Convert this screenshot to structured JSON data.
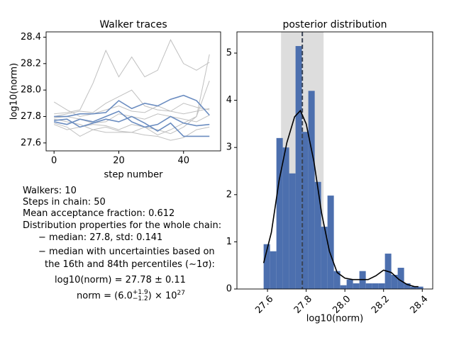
{
  "chart_data": [
    {
      "type": "line",
      "title": "Walker traces",
      "xlabel": "step number",
      "ylabel": "log10(norm)",
      "x": [
        0,
        4,
        8,
        12,
        16,
        20,
        24,
        28,
        32,
        36,
        40,
        44,
        48
      ],
      "series": [
        {
          "color": "#c0c0c0",
          "values": [
            27.82,
            27.83,
            27.85,
            28.05,
            28.3,
            28.1,
            28.25,
            28.1,
            28.15,
            28.38,
            28.2,
            28.15,
            28.21
          ]
        },
        {
          "color": "#c0c0c0",
          "values": [
            27.91,
            27.85,
            27.8,
            27.82,
            27.85,
            27.88,
            27.84,
            27.83,
            27.88,
            27.84,
            27.9,
            27.87,
            27.85
          ]
        },
        {
          "color": "#c0c0c0",
          "values": [
            27.75,
            27.72,
            27.65,
            27.7,
            27.72,
            27.69,
            27.68,
            27.72,
            27.66,
            27.7,
            27.75,
            27.8,
            28.07
          ]
        },
        {
          "color": "#c0c0c0",
          "values": [
            27.74,
            27.7,
            27.72,
            27.74,
            27.73,
            27.7,
            27.74,
            27.72,
            27.7,
            27.67,
            27.72,
            27.8,
            28.27
          ]
        },
        {
          "color": "#c0c0c0",
          "values": [
            27.79,
            27.8,
            27.78,
            27.75,
            27.76,
            27.82,
            27.8,
            27.78,
            27.82,
            27.8,
            27.78,
            27.76,
            27.81
          ]
        },
        {
          "color": "#c0c0c0",
          "values": [
            27.78,
            27.76,
            27.74,
            27.7,
            27.68,
            27.68,
            27.68,
            27.66,
            27.65,
            27.62,
            27.64,
            27.7,
            27.72
          ]
        },
        {
          "color": "#c0c0c0",
          "values": [
            27.8,
            27.82,
            27.84,
            27.83,
            27.9,
            27.95,
            28.0,
            27.88,
            27.85,
            27.84,
            27.82,
            27.84,
            27.86
          ]
        },
        {
          "color": "#6a8cc0",
          "values": [
            27.8,
            27.8,
            27.82,
            27.82,
            27.83,
            27.92,
            27.86,
            27.9,
            27.88,
            27.93,
            27.96,
            27.92,
            27.81
          ]
        },
        {
          "color": "#6a8cc0",
          "values": [
            27.76,
            27.74,
            27.78,
            27.76,
            27.8,
            27.84,
            27.76,
            27.72,
            27.74,
            27.8,
            27.75,
            27.73,
            27.74
          ]
        },
        {
          "color": "#6a8cc0",
          "values": [
            27.77,
            27.78,
            27.72,
            27.75,
            27.78,
            27.76,
            27.8,
            27.75,
            27.69,
            27.75,
            27.65,
            27.65,
            27.65
          ]
        }
      ],
      "xlim": [
        -2.45,
        51.45
      ],
      "ylim": [
        27.54,
        28.44
      ],
      "xticks": [
        0,
        20,
        40
      ],
      "yticks": [
        27.6,
        27.8,
        {
          "value": 28,
          "label": "28.0"
        },
        28.2,
        28.4
      ]
    },
    {
      "type": "histogram",
      "title": "posterior distribution",
      "xlabel": "log10(norm)",
      "color": "#4c6fae",
      "bins": [
        27.58,
        27.613,
        27.646,
        27.679,
        27.712,
        27.745,
        27.778,
        27.811,
        27.844,
        27.877,
        27.91,
        27.943,
        27.976,
        28.009,
        28.042,
        28.075,
        28.108,
        28.141,
        28.174,
        28.207,
        28.24,
        28.273,
        28.306,
        28.339,
        28.372,
        28.405
      ],
      "values": [
        0.95,
        0.8,
        3.2,
        3.0,
        2.45,
        5.15,
        3.33,
        4.2,
        2.27,
        1.32,
        1.98,
        0.38,
        0.08,
        0.2,
        0.12,
        0.38,
        0.12,
        0.12,
        0.12,
        0.75,
        0.3,
        0.45,
        0.12,
        0.05,
        0.05
      ],
      "kde": {
        "color": "#000000",
        "x": [
          27.58,
          27.62,
          27.66,
          27.7,
          27.74,
          27.77,
          27.8,
          27.84,
          27.88,
          27.92,
          27.96,
          28.0,
          28.04,
          28.08,
          28.12,
          28.16,
          28.2,
          28.24,
          28.28,
          28.32,
          28.36,
          28.38
        ],
        "values": [
          0.55,
          1.2,
          2.3,
          3.1,
          3.65,
          3.78,
          3.5,
          2.7,
          1.6,
          0.8,
          0.35,
          0.23,
          0.2,
          0.2,
          0.2,
          0.28,
          0.4,
          0.35,
          0.2,
          0.1,
          0.05,
          0.05
        ]
      },
      "median": 27.78,
      "band": [
        27.67,
        27.89
      ],
      "band_color": "#dddddd",
      "median_color": "#3a4455",
      "xlim": [
        27.442,
        28.454
      ],
      "ylim": [
        0,
        5.45
      ],
      "xticks": [
        27.6,
        27.8,
        {
          "value": 28,
          "label": "28.0"
        },
        28.2,
        28.4
      ],
      "yticks": [
        0,
        1,
        2,
        3,
        4,
        5
      ]
    }
  ],
  "summary": {
    "walkers": "Walkers: 10",
    "steps": "Steps in chain: 50",
    "acceptance": "Mean acceptance fraction: 0.612",
    "distribution": "Distribution properties for the whole chain:",
    "median_std": "− median: 27.8, std: 0.141",
    "uncertainty_1": "− median with uncertainties based on",
    "uncertainty_2": "the 16th and 84th percentiles (∼1σ):",
    "log_result": "log10(norm) = 27.78 ± 0.11",
    "norm_result": {
      "prefix": "norm = (6.0",
      "sup": "+1.9",
      "sub": "−1.2",
      "mid": ") × 10",
      "exp": "27"
    }
  }
}
